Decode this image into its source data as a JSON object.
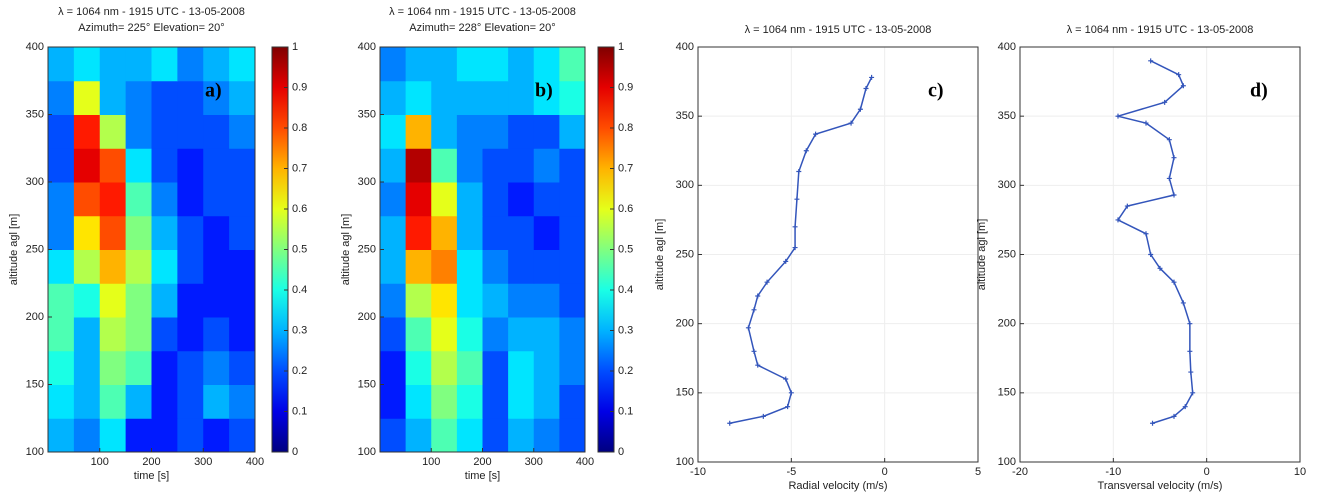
{
  "chart_data": [
    {
      "type": "heatmap",
      "title": "λ = 1064 nm - 1915 UTC - 13-05-2008",
      "subtitle": "Azimuth= 225° Elevation= 20°",
      "annotation": "a)",
      "x_label": "time [s]",
      "y_label": "altitude agl [m]",
      "x": [
        25,
        75,
        125,
        175,
        225,
        275,
        325,
        375
      ],
      "y": [
        112.5,
        137.5,
        162.5,
        187.5,
        212.5,
        237.5,
        262.5,
        287.5,
        312.5,
        337.5,
        362.5,
        387.5
      ],
      "z": [
        [
          0.3,
          0.25,
          0.35,
          0.15,
          0.15,
          0.2,
          0.15,
          0.2
        ],
        [
          0.35,
          0.3,
          0.45,
          0.3,
          0.15,
          0.2,
          0.3,
          0.25
        ],
        [
          0.4,
          0.3,
          0.5,
          0.45,
          0.15,
          0.2,
          0.25,
          0.2
        ],
        [
          0.45,
          0.3,
          0.55,
          0.5,
          0.2,
          0.15,
          0.2,
          0.15
        ],
        [
          0.45,
          0.4,
          0.6,
          0.5,
          0.3,
          0.15,
          0.15,
          0.15
        ],
        [
          0.35,
          0.55,
          0.7,
          0.55,
          0.35,
          0.2,
          0.15,
          0.15
        ],
        [
          0.25,
          0.65,
          0.8,
          0.5,
          0.3,
          0.2,
          0.15,
          0.2
        ],
        [
          0.25,
          0.8,
          0.85,
          0.45,
          0.25,
          0.15,
          0.2,
          0.2
        ],
        [
          0.2,
          0.9,
          0.8,
          0.35,
          0.2,
          0.15,
          0.2,
          0.2
        ],
        [
          0.2,
          0.85,
          0.55,
          0.25,
          0.2,
          0.2,
          0.2,
          0.25
        ],
        [
          0.25,
          0.6,
          0.3,
          0.25,
          0.2,
          0.2,
          0.25,
          0.3
        ],
        [
          0.3,
          0.35,
          0.3,
          0.3,
          0.35,
          0.25,
          0.3,
          0.35
        ]
      ],
      "xlim": [
        0,
        400
      ],
      "xticks": [
        100,
        200,
        300,
        400
      ],
      "ylim": [
        100,
        400
      ],
      "yticks": [
        100,
        150,
        200,
        250,
        300,
        350,
        400
      ],
      "clim": [
        0,
        1
      ],
      "cticks": [
        0,
        0.1,
        0.2,
        0.3,
        0.4,
        0.5,
        0.6,
        0.7,
        0.8,
        0.9,
        1
      ],
      "colormap": "jet"
    },
    {
      "type": "heatmap",
      "title": "λ = 1064 nm - 1915 UTC - 13-05-2008",
      "subtitle": "Azimuth= 228° Elevation= 20°",
      "annotation": "b)",
      "x_label": "time [s]",
      "y_label": "altitude agl [m]",
      "x": [
        25,
        75,
        125,
        175,
        225,
        275,
        325,
        375
      ],
      "y": [
        112.5,
        137.5,
        162.5,
        187.5,
        212.5,
        237.5,
        262.5,
        287.5,
        312.5,
        337.5,
        362.5,
        387.5
      ],
      "z": [
        [
          0.2,
          0.3,
          0.45,
          0.35,
          0.2,
          0.3,
          0.25,
          0.2
        ],
        [
          0.15,
          0.35,
          0.5,
          0.4,
          0.2,
          0.35,
          0.3,
          0.2
        ],
        [
          0.15,
          0.4,
          0.55,
          0.45,
          0.2,
          0.35,
          0.3,
          0.25
        ],
        [
          0.2,
          0.45,
          0.6,
          0.4,
          0.25,
          0.3,
          0.3,
          0.25
        ],
        [
          0.25,
          0.55,
          0.65,
          0.35,
          0.3,
          0.25,
          0.25,
          0.2
        ],
        [
          0.3,
          0.7,
          0.75,
          0.35,
          0.25,
          0.2,
          0.2,
          0.2
        ],
        [
          0.3,
          0.85,
          0.7,
          0.3,
          0.2,
          0.2,
          0.15,
          0.2
        ],
        [
          0.25,
          0.9,
          0.6,
          0.3,
          0.2,
          0.15,
          0.2,
          0.2
        ],
        [
          0.3,
          0.95,
          0.45,
          0.25,
          0.2,
          0.2,
          0.25,
          0.2
        ],
        [
          0.35,
          0.7,
          0.3,
          0.25,
          0.25,
          0.2,
          0.2,
          0.3
        ],
        [
          0.3,
          0.35,
          0.3,
          0.3,
          0.3,
          0.3,
          0.35,
          0.4
        ],
        [
          0.25,
          0.3,
          0.3,
          0.35,
          0.35,
          0.3,
          0.35,
          0.45
        ]
      ],
      "xlim": [
        0,
        400
      ],
      "xticks": [
        100,
        200,
        300,
        400
      ],
      "ylim": [
        100,
        400
      ],
      "yticks": [
        100,
        150,
        200,
        250,
        300,
        350,
        400
      ],
      "clim": [
        0,
        1
      ],
      "cticks": [
        0,
        0.1,
        0.2,
        0.3,
        0.4,
        0.5,
        0.6,
        0.7,
        0.8,
        0.9,
        1
      ],
      "colormap": "jet"
    },
    {
      "type": "profile",
      "title": "λ = 1064 nm - 1915 UTC - 13-05-2008",
      "annotation": "c)",
      "x_label": "Radial velocity (m/s)",
      "y_label": "altitude agl [m]",
      "color": "#3355bb",
      "x": [
        -8.3,
        -6.5,
        -5.2,
        -5.0,
        -5.3,
        -6.8,
        -7.0,
        -7.3,
        -7.0,
        -6.8,
        -6.3,
        -5.3,
        -4.8,
        -4.8,
        -4.7,
        -4.6,
        -4.2,
        -3.7,
        -1.8,
        -1.3,
        -1.0,
        -0.7
      ],
      "y": [
        128,
        133,
        140,
        150,
        160,
        170,
        180,
        197,
        210,
        220,
        230,
        245,
        255,
        270,
        290,
        310,
        325,
        337,
        345,
        355,
        370,
        378
      ],
      "xlim": [
        -10,
        5
      ],
      "xticks": [
        -10,
        -5,
        0,
        5
      ],
      "ylim": [
        100,
        400
      ],
      "yticks": [
        100,
        150,
        200,
        250,
        300,
        350,
        400
      ]
    },
    {
      "type": "profile",
      "title": "λ = 1064 nm - 1915 UTC - 13-05-2008",
      "annotation": "d)",
      "x_label": "Transversal velocity (m/s)",
      "y_label": "altitude agl [m]",
      "color": "#3355bb",
      "x": [
        -5.8,
        -3.5,
        -2.3,
        -1.5,
        -1.7,
        -1.8,
        -1.8,
        -2.5,
        -3.5,
        -5.0,
        -6.0,
        -6.5,
        -9.5,
        -8.5,
        -3.5,
        -4.0,
        -3.5,
        -4.0,
        -6.5,
        -9.5,
        -4.5,
        -2.5,
        -3.0,
        -6.0
      ],
      "y": [
        128,
        133,
        140,
        150,
        165,
        180,
        200,
        215,
        230,
        240,
        250,
        265,
        275,
        285,
        293,
        305,
        320,
        333,
        345,
        350,
        360,
        372,
        380,
        390
      ],
      "xlim": [
        -20,
        10
      ],
      "xticks": [
        -20,
        -10,
        0,
        10
      ],
      "ylim": [
        100,
        400
      ],
      "yticks": [
        100,
        150,
        200,
        250,
        300,
        350,
        400
      ]
    }
  ]
}
